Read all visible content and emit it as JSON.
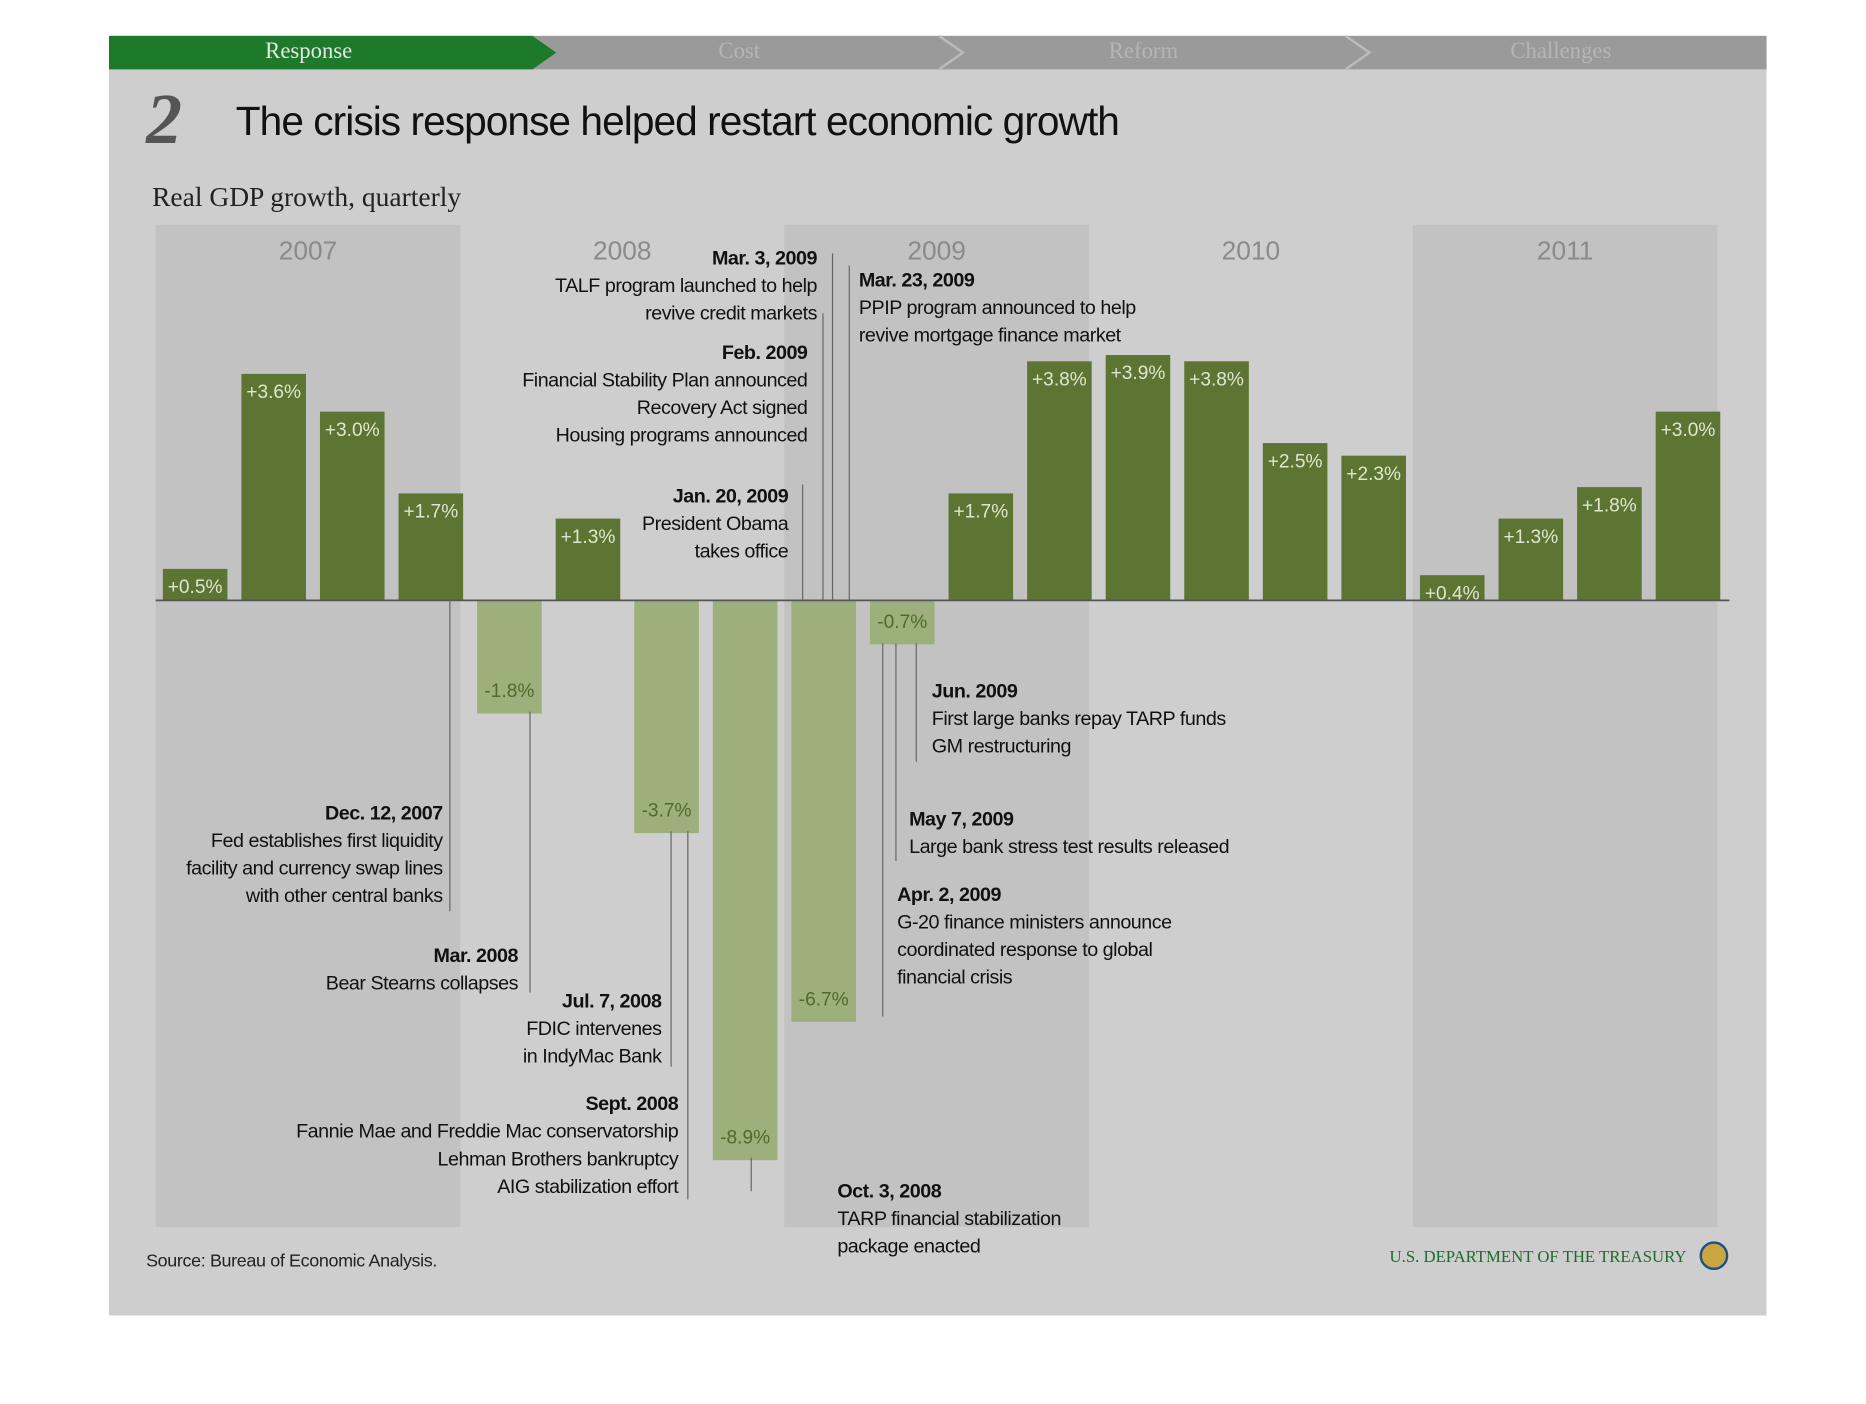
{
  "nav": {
    "tabs": [
      "Response",
      "Cost",
      "Reform",
      "Challenges"
    ]
  },
  "slide_number": "2",
  "chart_data": {
    "type": "bar",
    "title": "The crisis response helped restart economic growth",
    "subtitle": "Real GDP growth, quarterly",
    "years": [
      "2007",
      "2008",
      "2009",
      "2010",
      "2011"
    ],
    "categories": [
      null,
      null,
      null,
      null,
      null,
      null,
      null,
      null,
      null,
      null,
      null,
      null,
      null,
      null,
      null,
      null,
      null,
      null,
      null,
      null
    ],
    "values": [
      0.5,
      3.6,
      3.0,
      1.7,
      -1.8,
      1.3,
      -3.7,
      -8.9,
      -6.7,
      -0.7,
      1.7,
      3.8,
      3.9,
      3.8,
      2.5,
      2.3,
      0.4,
      1.3,
      1.8,
      3.0
    ],
    "value_labels": [
      "+0.5%",
      "+3.6%",
      "+3.0%",
      "+1.7%",
      "-1.8%",
      "+1.3%",
      "-3.7%",
      "-8.9%",
      "-6.7%",
      "-0.7%",
      "+1.7%",
      "+3.8%",
      "+3.9%",
      "+3.8%",
      "+2.5%",
      "+2.3%",
      "+0.4%",
      "+1.3%",
      "+1.8%",
      "+3.0%"
    ],
    "ylim": [
      -10,
      5
    ],
    "colors": {
      "positive": "#5c7532",
      "negative": "#9daf7a"
    },
    "annotations": [
      {
        "date": "Mar. 3, 2009",
        "text": [
          "TALF program launched to help",
          "revive credit markets"
        ]
      },
      {
        "date": "Mar. 23, 2009",
        "text": [
          "PPIP program announced to help",
          "revive mortgage finance market"
        ]
      },
      {
        "date": "Feb. 2009",
        "text": [
          "Financial Stability Plan announced",
          "Recovery Act signed",
          "Housing programs announced"
        ]
      },
      {
        "date": "Jan. 20, 2009",
        "text": [
          "President Obama",
          "takes office"
        ]
      },
      {
        "date": "Jun. 2009",
        "text": [
          "First large banks repay TARP funds",
          "GM restructuring"
        ]
      },
      {
        "date": "May 7, 2009",
        "text": [
          "Large bank stress test results released"
        ]
      },
      {
        "date": "Apr. 2, 2009",
        "text": [
          "G-20 finance ministers announce",
          "coordinated response to global",
          "financial crisis"
        ]
      },
      {
        "date": "Dec. 12, 2007",
        "text": [
          "Fed establishes first liquidity",
          "facility and currency swap lines",
          "with other central banks"
        ]
      },
      {
        "date": "Mar. 2008",
        "text": [
          "Bear Stearns collapses"
        ]
      },
      {
        "date": "Jul. 7, 2008",
        "text": [
          "FDIC intervenes",
          "in IndyMac Bank"
        ]
      },
      {
        "date": "Sept. 2008",
        "text": [
          "Fannie Mae and Freddie Mac conservatorship",
          "Lehman Brothers bankruptcy",
          "AIG stabilization effort"
        ]
      },
      {
        "date": "Oct. 3, 2008",
        "text": [
          "TARP financial stabilization",
          "package enacted"
        ]
      }
    ]
  },
  "footer": {
    "source": "Source: Bureau of Economic Analysis.",
    "agency": "U.S. DEPARTMENT OF THE TREASURY"
  }
}
